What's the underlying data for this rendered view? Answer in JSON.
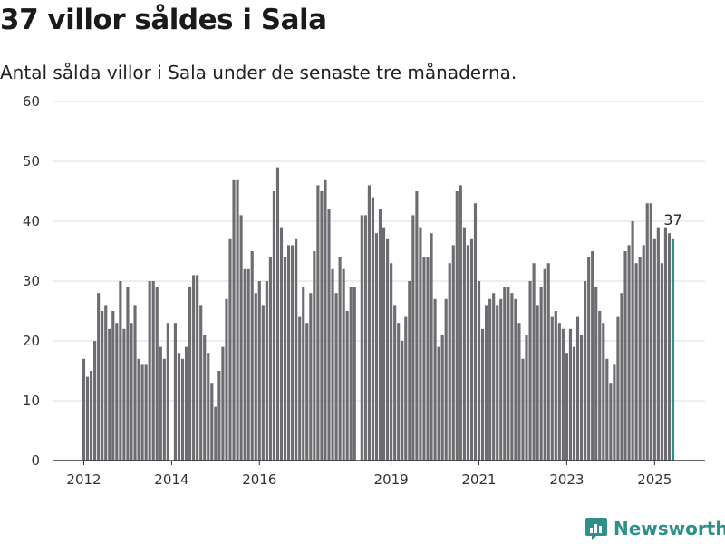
{
  "title": "37 villor såldes i Sala",
  "subtitle": "Antal sålda villor i Sala under de senaste tre månaderna.",
  "brand": {
    "name": "Newsworthy"
  },
  "colors": {
    "bar": "#6d6c70",
    "highlight": "#2f8f8b",
    "grid": "#dddddd",
    "axis": "#333333"
  },
  "chart_data": {
    "type": "bar",
    "title": "37 villor såldes i Sala",
    "subtitle": "Antal sålda villor i Sala under de senaste tre månaderna.",
    "xlabel": "",
    "ylabel": "",
    "ylim": [
      0,
      60
    ],
    "yticks": [
      0,
      10,
      20,
      30,
      40,
      50,
      60
    ],
    "xticks": [
      "2012",
      "2014",
      "2016",
      "2019",
      "2021",
      "2023",
      "2025"
    ],
    "grid": true,
    "highlight_label": "37",
    "series": [
      {
        "values": [
          17,
          14,
          15,
          20,
          28,
          25,
          26,
          22,
          25,
          23,
          30,
          22,
          29,
          23,
          26,
          17,
          16,
          16,
          30,
          30,
          29,
          19,
          17,
          23,
          0,
          23,
          18,
          17,
          19,
          29,
          31,
          31,
          26,
          21,
          18,
          13,
          9,
          15,
          19,
          27,
          37,
          47,
          47,
          41,
          32,
          32,
          35,
          28,
          30,
          26,
          30,
          34,
          45,
          49,
          39,
          34,
          36,
          36,
          37,
          24,
          29,
          23,
          28,
          35,
          46,
          45,
          47,
          42,
          32,
          28,
          34,
          32,
          25,
          29,
          29,
          0,
          41,
          41,
          46,
          44,
          38,
          42,
          39,
          37,
          33,
          26,
          23,
          20,
          24,
          30,
          41,
          45,
          39,
          34,
          34,
          38,
          27,
          19,
          21,
          27,
          33,
          36,
          45,
          46,
          39,
          36,
          37,
          43,
          30,
          22,
          26,
          27,
          28,
          26,
          27,
          29,
          29,
          28,
          27,
          23,
          17,
          21,
          30,
          33,
          26,
          29,
          32,
          33,
          24,
          25,
          23,
          22,
          18,
          22,
          19,
          24,
          21,
          30,
          34,
          35,
          29,
          25,
          23,
          17,
          13,
          16,
          24,
          28,
          35,
          36,
          40,
          33,
          34,
          36,
          43,
          43,
          37,
          39,
          33,
          39,
          38,
          37
        ]
      }
    ]
  }
}
